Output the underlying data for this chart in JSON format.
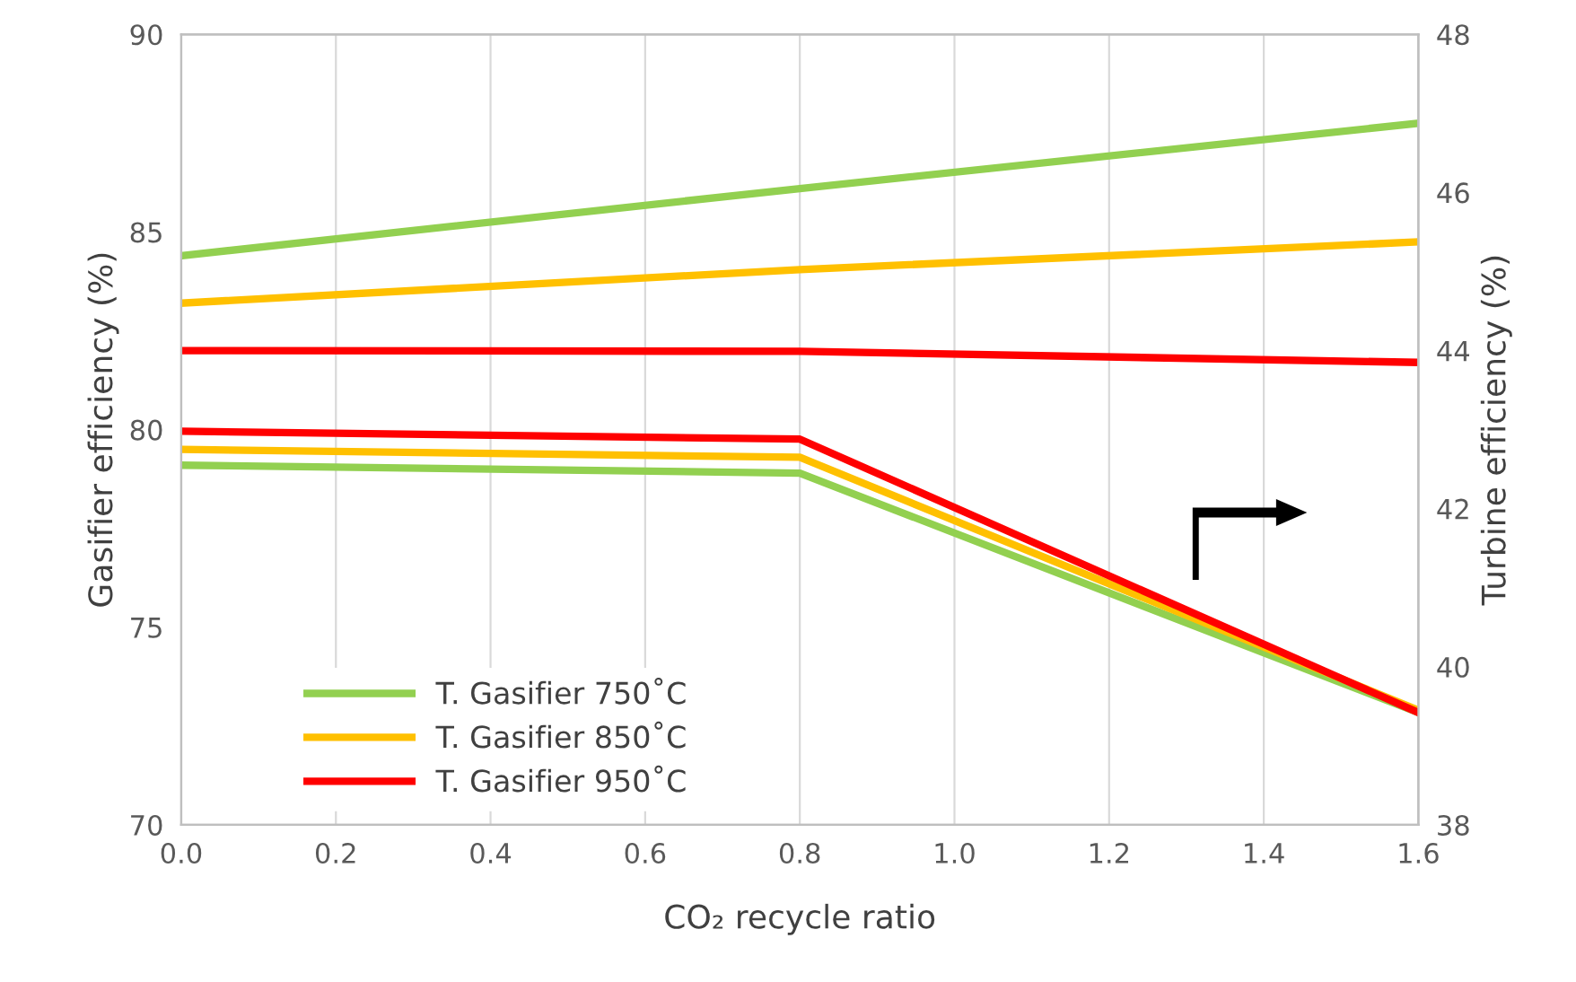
{
  "chart_data": {
    "type": "line",
    "xlabel": "CO₂ recycle ratio",
    "ylabel": "Gasifier efficiency (%)",
    "y2label": "Turbine efficiency (%)",
    "x": [
      0,
      0.8,
      1.6
    ],
    "series": [
      {
        "name": "T. Gasifier 750˚C",
        "color": "#92d050",
        "values": [
          84.4,
          86.1,
          87.75
        ]
      },
      {
        "name": "T. Gasifier 850˚C",
        "color": "#ffc000",
        "values": [
          83.2,
          84.05,
          84.75
        ]
      },
      {
        "name": "T. Gasifier 950˚C",
        "color": "#ff0000",
        "values": [
          82.0,
          81.98,
          81.7
        ]
      },
      {
        "color": "#92d050",
        "axis": "y2",
        "values": [
          42.55,
          42.45,
          39.42
        ]
      },
      {
        "color": "#ffc000",
        "axis": "y2",
        "values": [
          42.75,
          42.65,
          39.45
        ]
      },
      {
        "color": "#ff0000",
        "axis": "y2",
        "values": [
          42.98,
          42.88,
          39.42
        ]
      }
    ],
    "xlim": [
      0,
      1.6
    ],
    "xticks": [
      {
        "value": 0,
        "label": "0.0"
      },
      {
        "value": 0.2,
        "label": "0.2"
      },
      {
        "value": 0.4,
        "label": "0.4"
      },
      {
        "value": 0.6,
        "label": "0.6"
      },
      {
        "value": 0.8,
        "label": "0.8"
      },
      {
        "value": 1.0,
        "label": "1.0"
      },
      {
        "value": 1.2,
        "label": "1.2"
      },
      {
        "value": 1.4,
        "label": "1.4"
      },
      {
        "value": 1.6,
        "label": "1.6"
      }
    ],
    "ylim": [
      70,
      90
    ],
    "yticks": [
      70,
      75,
      80,
      85,
      90
    ],
    "y2lim": [
      38,
      48
    ],
    "y2ticks": [
      38,
      40,
      42,
      44,
      46,
      48
    ],
    "grid": "x",
    "legend": "bottom left",
    "marker": "none",
    "line_style": "solid"
  }
}
